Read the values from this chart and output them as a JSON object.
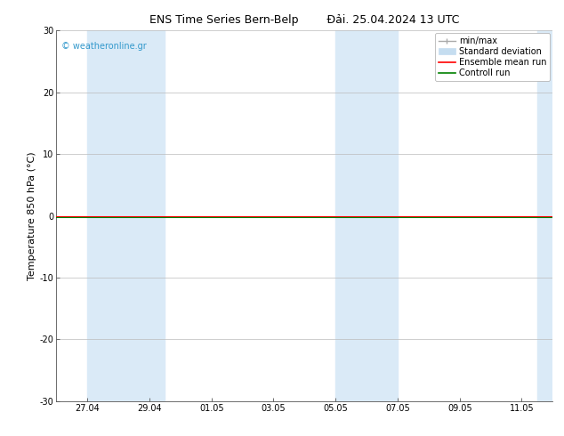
{
  "title_left": "ENS Time Series Bern-Belp",
  "title_right": "Đải. 25.04.2024 13 UTC",
  "ylabel": "Temperature 850 hPa (°C)",
  "ylim": [
    -30,
    30
  ],
  "yticks": [
    -30,
    -20,
    -10,
    0,
    10,
    20,
    30
  ],
  "xtick_labels": [
    "27.04",
    "29.04",
    "01.05",
    "03.05",
    "05.05",
    "07.05",
    "09.05",
    "11.05"
  ],
  "xtick_positions": [
    1,
    3,
    5,
    7,
    9,
    11,
    13,
    15
  ],
  "xlim": [
    0,
    16
  ],
  "watermark": "© weatheronline.gr",
  "bg_color": "#ffffff",
  "shaded_bands": [
    [
      1.0,
      3.0
    ],
    [
      3.0,
      3.5
    ],
    [
      9.0,
      10.5
    ],
    [
      10.5,
      11.0
    ],
    [
      15.5,
      16.0
    ]
  ],
  "shaded_color": "#daeaf7",
  "flat_line_y": 0.0,
  "ensemble_mean_color": "#ff0000",
  "control_run_color": "#008000",
  "minmax_color": "#aaaaaa",
  "std_dev_color": "#c5ddf0",
  "legend_labels": [
    "min/max",
    "Standard deviation",
    "Ensemble mean run",
    "Controll run"
  ],
  "title_fontsize": 9,
  "ylabel_fontsize": 8,
  "tick_fontsize": 7,
  "watermark_fontsize": 7,
  "legend_fontsize": 7
}
